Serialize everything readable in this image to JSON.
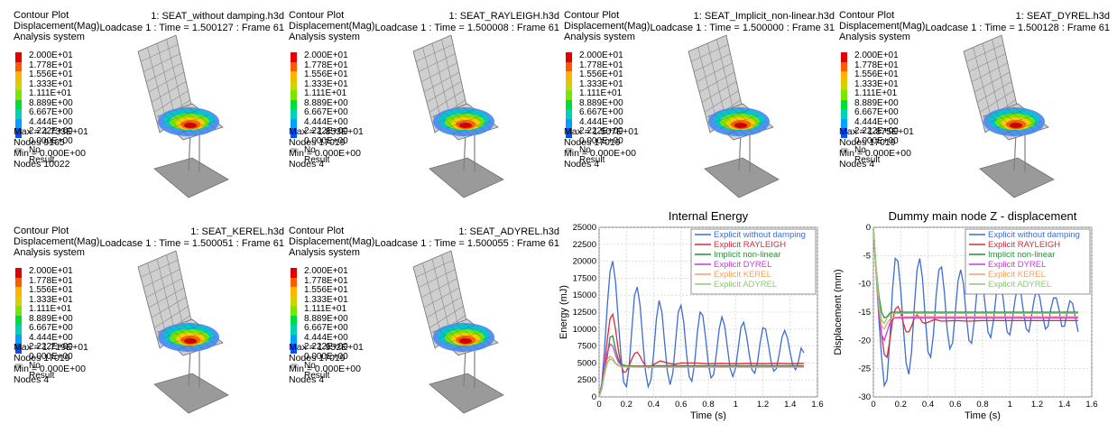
{
  "contour_panels": [
    {
      "plot_title": "Contour Plot",
      "result": "Displacement(Mag)",
      "system": "Analysis system",
      "file": "1: SEAT_without damping.h3d",
      "loadcase": "Loadcase 1 : Time = 1.500127 : Frame 61",
      "max": "Max = 4.733E+01",
      "max_nodes": "Nodes 9165",
      "min": "Min = 0.000E+00",
      "min_nodes": "Nodes 10022"
    },
    {
      "plot_title": "Contour Plot",
      "result": "Displacement(Mag)",
      "system": "Analysis system",
      "file": "1: SEAT_RAYLEIGH.h3d",
      "loadcase": "Loadcase 1 : Time = 1.500008 : Frame 61",
      "max": "Max = 1.853E+01",
      "max_nodes": "Nodes 17019",
      "min": "Min = 0.000E+00",
      "min_nodes": "Nodes 4"
    },
    {
      "plot_title": "Contour Plot",
      "result": "Displacement(Mag)",
      "system": "Analysis system",
      "file": "1: SEAT_Implicit_non-linear.h3d",
      "loadcase": "Loadcase 1 : Time = 1.500000 : Frame 31",
      "max": "Max = 1.507E+01",
      "max_nodes": "Nodes 17019",
      "min": "Min = 0.000E+00",
      "min_nodes": "Nodes 4"
    },
    {
      "plot_title": "Contour Plot",
      "result": "Displacement(Mag)",
      "system": "Analysis system",
      "file": "1: SEAT_DYREL.h3d",
      "loadcase": "Loadcase 1 : Time = 1.500128 : Frame 61",
      "max": "Max = 1.875E+01",
      "max_nodes": "Nodes 17019",
      "min": "Min = 0.000E+00",
      "min_nodes": "Nodes 4"
    },
    {
      "plot_title": "Contour Plot",
      "result": "Displacement(Mag)",
      "system": "Analysis system",
      "file": "1: SEAT_KEREL.h3d",
      "loadcase": "Loadcase 1 : Time = 1.500051 : Frame 61",
      "max": "Max = 1.719E+01",
      "max_nodes": "Nodes 17019",
      "min": "Min = 0.000E+00",
      "min_nodes": "Nodes 4"
    },
    {
      "plot_title": "Contour Plot",
      "result": "Displacement(Mag)",
      "system": "Analysis system",
      "file": "1: SEAT_ADYREL.h3d",
      "loadcase": "Loadcase 1 : Time = 1.500055 : Frame 61",
      "max": "Max = 1.952E+01",
      "max_nodes": "Nodes 17019",
      "min": "Min = 0.000E+00",
      "min_nodes": "Nodes 4"
    }
  ],
  "legend_values": [
    "2.000E+01",
    "1.778E+01",
    "1.556E+01",
    "1.333E+01",
    "1.111E+01",
    "8.889E+00",
    "6.667E+00",
    "4.444E+00",
    "2.222E+00",
    "0.000E+00"
  ],
  "legend_colors": [
    "#e00000",
    "#ff5a00",
    "#ffb400",
    "#d2d200",
    "#78e600",
    "#00dc3c",
    "#00d2b4",
    "#00a0ff",
    "#0050ff"
  ],
  "no_result": "No Result",
  "chart_data": [
    {
      "type": "line",
      "title": "Internal Energy",
      "xlabel": "Time (s)",
      "ylabel": "Energy (mJ)",
      "xlim": [
        0,
        1.6
      ],
      "ylim": [
        0,
        25000
      ],
      "xticks": [
        "0",
        "0.2",
        "0.4",
        "0.6",
        "0.8",
        "1",
        "1.2",
        "1.4",
        "1.6"
      ],
      "yticks": [
        "0",
        "2500",
        "5000",
        "7500",
        "10000",
        "12500",
        "15000",
        "17500",
        "20000",
        "22500",
        "25000"
      ],
      "grid": true,
      "legend_position": "top-right",
      "series": [
        {
          "name": "Explicit without damping",
          "color": "#3c6cd4",
          "x": [
            0,
            0.02,
            0.04,
            0.06,
            0.08,
            0.1,
            0.12,
            0.14,
            0.16,
            0.18,
            0.2,
            0.22,
            0.24,
            0.26,
            0.28,
            0.3,
            0.32,
            0.34,
            0.36,
            0.38,
            0.4,
            0.42,
            0.44,
            0.46,
            0.48,
            0.5,
            0.52,
            0.54,
            0.56,
            0.58,
            0.6,
            0.62,
            0.64,
            0.66,
            0.68,
            0.7,
            0.72,
            0.74,
            0.76,
            0.78,
            0.8,
            0.82,
            0.84,
            0.86,
            0.88,
            0.9,
            0.92,
            0.94,
            0.96,
            0.98,
            1.0,
            1.02,
            1.04,
            1.06,
            1.08,
            1.1,
            1.12,
            1.14,
            1.16,
            1.18,
            1.2,
            1.22,
            1.24,
            1.26,
            1.28,
            1.3,
            1.32,
            1.34,
            1.36,
            1.38,
            1.4,
            1.42,
            1.44,
            1.46,
            1.48,
            1.5
          ],
          "y": [
            0,
            2000,
            7000,
            13500,
            18500,
            20000,
            17000,
            11500,
            6000,
            2200,
            1500,
            4500,
            10000,
            15000,
            16200,
            13500,
            8500,
            3800,
            1500,
            2500,
            6500,
            11500,
            14200,
            12500,
            8000,
            3800,
            1800,
            3500,
            8000,
            12500,
            13500,
            11000,
            6500,
            3000,
            2300,
            5000,
            9500,
            12500,
            12000,
            8800,
            5000,
            2800,
            3300,
            6500,
            10000,
            11800,
            10500,
            7300,
            4200,
            3000,
            4300,
            7300,
            10300,
            11000,
            9000,
            6300,
            4000,
            3500,
            5000,
            8000,
            10200,
            10000,
            7800,
            5200,
            3800,
            4200,
            6300,
            8800,
            9800,
            8700,
            6500,
            4600,
            4000,
            5200,
            7200,
            6500
          ]
        },
        {
          "name": "Explicit RAYLEIGH",
          "color": "#dc2838",
          "x": [
            0,
            0.02,
            0.04,
            0.06,
            0.08,
            0.1,
            0.12,
            0.14,
            0.16,
            0.18,
            0.2,
            0.22,
            0.24,
            0.26,
            0.28,
            0.3,
            0.32,
            0.34,
            0.36,
            0.38,
            0.4,
            0.45,
            0.5,
            0.55,
            0.6,
            0.7,
            0.8,
            0.9,
            1.0,
            1.1,
            1.2,
            1.3,
            1.4,
            1.5
          ],
          "y": [
            0,
            1500,
            4500,
            8500,
            11500,
            12200,
            10000,
            7000,
            4800,
            3600,
            3800,
            4600,
            5600,
            6400,
            6600,
            6000,
            5200,
            4600,
            4300,
            4400,
            4800,
            5300,
            5000,
            4800,
            5000,
            5000,
            4900,
            4950,
            4900,
            4950,
            4900,
            4950,
            4900,
            4950
          ]
        },
        {
          "name": "Implicit non-linear",
          "color": "#2c8c3c",
          "x": [
            0,
            0.02,
            0.04,
            0.06,
            0.08,
            0.1,
            0.12,
            0.14,
            0.16,
            0.2,
            0.3,
            0.4,
            0.6,
            0.8,
            1.0,
            1.2,
            1.5
          ],
          "y": [
            0,
            1200,
            3500,
            6000,
            8800,
            9000,
            7000,
            5600,
            4800,
            4600,
            4550,
            4600,
            4600,
            4600,
            4600,
            4600,
            4600
          ]
        },
        {
          "name": "Explicit DYREL",
          "color": "#c83cdc",
          "x": [
            0,
            0.02,
            0.04,
            0.06,
            0.08,
            0.1,
            0.12,
            0.14,
            0.16,
            0.18,
            0.2,
            0.3,
            0.5,
            0.8,
            1.0,
            1.2,
            1.5
          ],
          "y": [
            0,
            1500,
            4000,
            6500,
            7800,
            7500,
            6200,
            5200,
            4700,
            4600,
            4500,
            4450,
            4450,
            4450,
            4450,
            4450,
            4450
          ]
        },
        {
          "name": "Explicit KEREL",
          "color": "#f0a064",
          "x": [
            0,
            0.02,
            0.04,
            0.06,
            0.08,
            0.1,
            0.12,
            0.14,
            0.16,
            0.2,
            0.3,
            0.5,
            0.8,
            1.0,
            1.2,
            1.5
          ],
          "y": [
            0,
            1400,
            3600,
            5500,
            6000,
            5700,
            5000,
            4700,
            4500,
            4450,
            4400,
            4400,
            4400,
            4400,
            4400,
            4400
          ]
        },
        {
          "name": "Explicit ADYREL",
          "color": "#8ccc70",
          "x": [
            0,
            0.02,
            0.04,
            0.06,
            0.08,
            0.1,
            0.12,
            0.14,
            0.16,
            0.2,
            0.3,
            0.5,
            0.8,
            1.0,
            1.2,
            1.5
          ],
          "y": [
            0,
            1300,
            3300,
            5000,
            5600,
            5400,
            4900,
            4600,
            4450,
            4400,
            4380,
            4380,
            4380,
            4380,
            4380,
            4380
          ]
        }
      ]
    },
    {
      "type": "line",
      "title": "Dummy main node Z - displacement",
      "xlabel": "Time (s)",
      "ylabel": "Displacement (mm)",
      "xlim": [
        0,
        1.6
      ],
      "ylim": [
        -30,
        0
      ],
      "xticks": [
        "0",
        "0.2",
        "0.4",
        "0.6",
        "0.8",
        "1",
        "1.2",
        "1.4",
        "1.6"
      ],
      "yticks": [
        "-30",
        "-25",
        "-20",
        "-15",
        "-10",
        "-5",
        "0"
      ],
      "grid": true,
      "legend_position": "top-right",
      "series": [
        {
          "name": "Explicit without damping",
          "color": "#3c6cd4",
          "x": [
            0,
            0.02,
            0.04,
            0.06,
            0.08,
            0.1,
            0.12,
            0.14,
            0.16,
            0.18,
            0.2,
            0.22,
            0.24,
            0.26,
            0.28,
            0.3,
            0.32,
            0.34,
            0.36,
            0.38,
            0.4,
            0.42,
            0.44,
            0.46,
            0.48,
            0.5,
            0.52,
            0.54,
            0.56,
            0.58,
            0.6,
            0.62,
            0.64,
            0.66,
            0.68,
            0.7,
            0.72,
            0.74,
            0.76,
            0.78,
            0.8,
            0.82,
            0.84,
            0.86,
            0.88,
            0.9,
            0.92,
            0.94,
            0.96,
            0.98,
            1.0,
            1.02,
            1.04,
            1.06,
            1.08,
            1.1,
            1.12,
            1.14,
            1.16,
            1.18,
            1.2,
            1.22,
            1.24,
            1.26,
            1.28,
            1.3,
            1.32,
            1.34,
            1.36,
            1.38,
            1.4,
            1.42,
            1.44,
            1.46,
            1.48,
            1.5
          ],
          "y": [
            0,
            -8,
            -16,
            -23,
            -28,
            -27,
            -20,
            -11,
            -5.5,
            -6,
            -11,
            -18,
            -24,
            -26,
            -22,
            -14,
            -7.5,
            -5.5,
            -9,
            -16,
            -22,
            -23,
            -19,
            -12,
            -7.5,
            -7,
            -11.5,
            -18,
            -21.5,
            -20.5,
            -15,
            -9.5,
            -7.5,
            -10,
            -15.5,
            -20,
            -20.5,
            -16.5,
            -11,
            -8.5,
            -9.5,
            -14,
            -18.5,
            -19.5,
            -16.5,
            -12,
            -9.5,
            -10.5,
            -14.5,
            -18.5,
            -19,
            -16,
            -12.5,
            -10.5,
            -11.5,
            -15,
            -18,
            -18.5,
            -15.5,
            -12.5,
            -11,
            -12.5,
            -15.5,
            -18,
            -17.5,
            -14.5,
            -12.5,
            -12.5,
            -14.5,
            -17.5,
            -17.5,
            -15,
            -13,
            -13.5,
            -16,
            -18.5
          ]
        },
        {
          "name": "Explicit RAYLEIGH",
          "color": "#dc2838",
          "x": [
            0,
            0.02,
            0.04,
            0.06,
            0.08,
            0.1,
            0.12,
            0.14,
            0.16,
            0.18,
            0.2,
            0.22,
            0.24,
            0.26,
            0.28,
            0.3,
            0.32,
            0.34,
            0.36,
            0.38,
            0.4,
            0.45,
            0.5,
            0.6,
            0.7,
            0.8,
            1.0,
            1.2,
            1.5
          ],
          "y": [
            0,
            -8,
            -14,
            -19,
            -22.5,
            -23,
            -20,
            -16.5,
            -14.5,
            -14,
            -15,
            -17,
            -18.5,
            -18.5,
            -17.5,
            -16,
            -15.5,
            -16,
            -16.8,
            -17,
            -16.8,
            -16.3,
            -16.6,
            -16.5,
            -16.6,
            -16.5,
            -16.5,
            -16.5,
            -16.5
          ]
        },
        {
          "name": "Implicit non-linear",
          "color": "#2c8c3c",
          "x": [
            0,
            0.02,
            0.04,
            0.06,
            0.08,
            0.1,
            0.12,
            0.14,
            0.16,
            0.2,
            0.3,
            0.5,
            0.8,
            1.0,
            1.2,
            1.5
          ],
          "y": [
            0,
            -7,
            -12,
            -15,
            -16,
            -15.8,
            -15.2,
            -15,
            -15,
            -15,
            -15,
            -15,
            -15,
            -15,
            -15,
            -15
          ]
        },
        {
          "name": "Explicit DYREL",
          "color": "#c83cdc",
          "x": [
            0,
            0.02,
            0.04,
            0.06,
            0.08,
            0.1,
            0.12,
            0.14,
            0.16,
            0.2,
            0.3,
            0.5,
            0.8,
            1.0,
            1.2,
            1.5
          ],
          "y": [
            0,
            -8,
            -15,
            -19,
            -20,
            -18.5,
            -17,
            -16.3,
            -16,
            -16,
            -16,
            -16,
            -16,
            -16,
            -16,
            -16
          ]
        },
        {
          "name": "Explicit KEREL",
          "color": "#f0a064",
          "x": [
            0,
            0.02,
            0.04,
            0.06,
            0.08,
            0.1,
            0.12,
            0.14,
            0.16,
            0.2,
            0.3,
            0.5,
            0.8,
            1.0,
            1.2,
            1.5
          ],
          "y": [
            0,
            -8,
            -14,
            -17.5,
            -18,
            -17,
            -16.3,
            -16,
            -15.9,
            -15.8,
            -15.8,
            -15.8,
            -15.8,
            -15.8,
            -15.8,
            -15.8
          ]
        },
        {
          "name": "Explicit ADYREL",
          "color": "#8ccc70",
          "x": [
            0,
            0.02,
            0.04,
            0.06,
            0.08,
            0.1,
            0.12,
            0.14,
            0.16,
            0.2,
            0.3,
            0.5,
            0.8,
            1.0,
            1.2,
            1.5
          ],
          "y": [
            0,
            -7,
            -13,
            -16.5,
            -17,
            -16,
            -15.5,
            -15.3,
            -15.2,
            -15.2,
            -15.2,
            -15.2,
            -15.2,
            -15.2,
            -15.2,
            -15.2
          ]
        }
      ]
    }
  ]
}
